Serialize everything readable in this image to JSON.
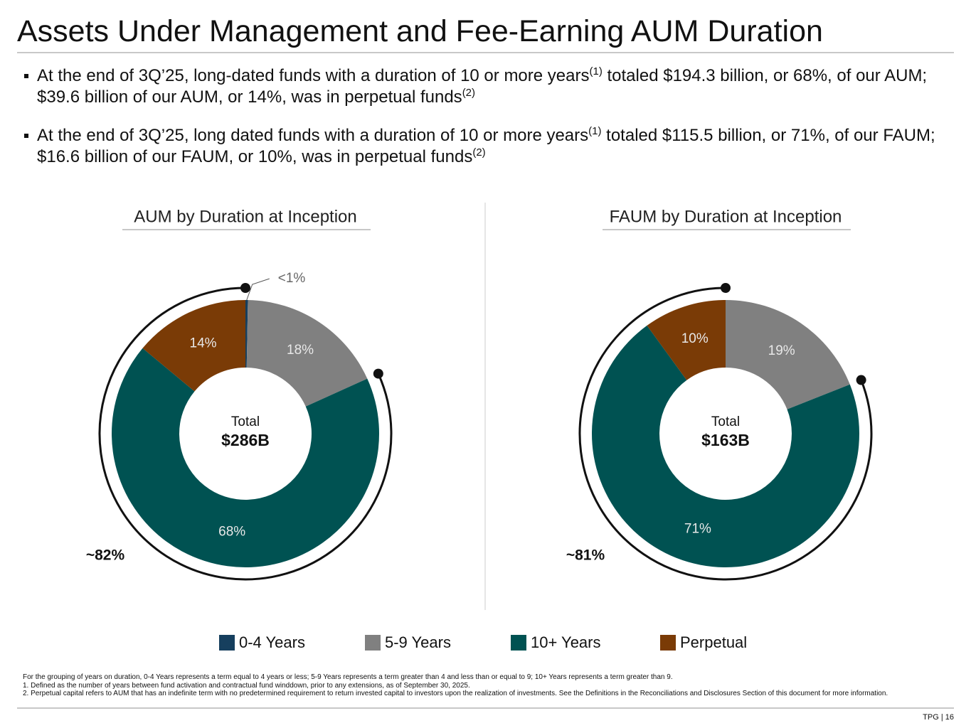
{
  "title": "Assets Under Management and Fee-Earning AUM Duration",
  "bullets": [
    [
      "At the end of 3Q’25, long-dated funds with a duration of 10 or more years",
      "(1)",
      " totaled $194.3 billion, or 68%, of our AUM; $39.6 billion of our AUM, or 14%, was in perpetual funds",
      "(2)"
    ],
    [
      "At the end of 3Q’25, long dated funds with a duration of 10 or more years",
      "(1)",
      " totaled $115.5 billion, or 71%, of our FAUM; $16.6 billion of our FAUM, or 10%, was in perpetual funds",
      "(2)"
    ]
  ],
  "chart_data": [
    {
      "type": "donut",
      "title": "AUM by Duration at Inception",
      "center_label": "Total",
      "center_value": "$286B",
      "annotation": "~82%",
      "categories": [
        "0-4 Years",
        "5-9 Years",
        "10+ Years",
        "Perpetual"
      ],
      "values": [
        0.3,
        18,
        68,
        14
      ],
      "value_labels": [
        "<1%",
        "18%",
        "68%",
        "14%"
      ],
      "colors": [
        "#163f5e",
        "#808080",
        "#005252",
        "#7a3b06"
      ]
    },
    {
      "type": "donut",
      "title": "FAUM by Duration at Inception",
      "center_label": "Total",
      "center_value": "$163B",
      "annotation": "~81%",
      "categories": [
        "5-9 Years",
        "10+ Years",
        "Perpetual"
      ],
      "values": [
        19,
        71,
        10
      ],
      "value_labels": [
        "19%",
        "71%",
        "10%"
      ],
      "colors": [
        "#808080",
        "#005252",
        "#7a3b06"
      ]
    }
  ],
  "legend": [
    {
      "name": "0-4 Years",
      "color": "#163f5e"
    },
    {
      "name": "5-9 Years",
      "color": "#808080"
    },
    {
      "name": "10+ Years",
      "color": "#005252"
    },
    {
      "name": "Perpetual",
      "color": "#7a3b06"
    }
  ],
  "footnotes": [
    "For the grouping of years on duration, 0-4 Years represents a term equal to 4 years or less; 5-9 Years represents a term greater than 4 and less than or equal to 9; 10+ Years represents a term greater than 9.",
    "1. Defined as the number of years between fund activation and contractual fund winddown, prior to any extensions, as of September 30, 2025.",
    "2. Perpetual capital refers to AUM that has an indefinite term with no predetermined requirement to return invested capital to investors upon the realization of investments. See the Definitions in the Reconciliations and Disclosures Section of this document for more information."
  ],
  "page_label": "TPG | 16"
}
